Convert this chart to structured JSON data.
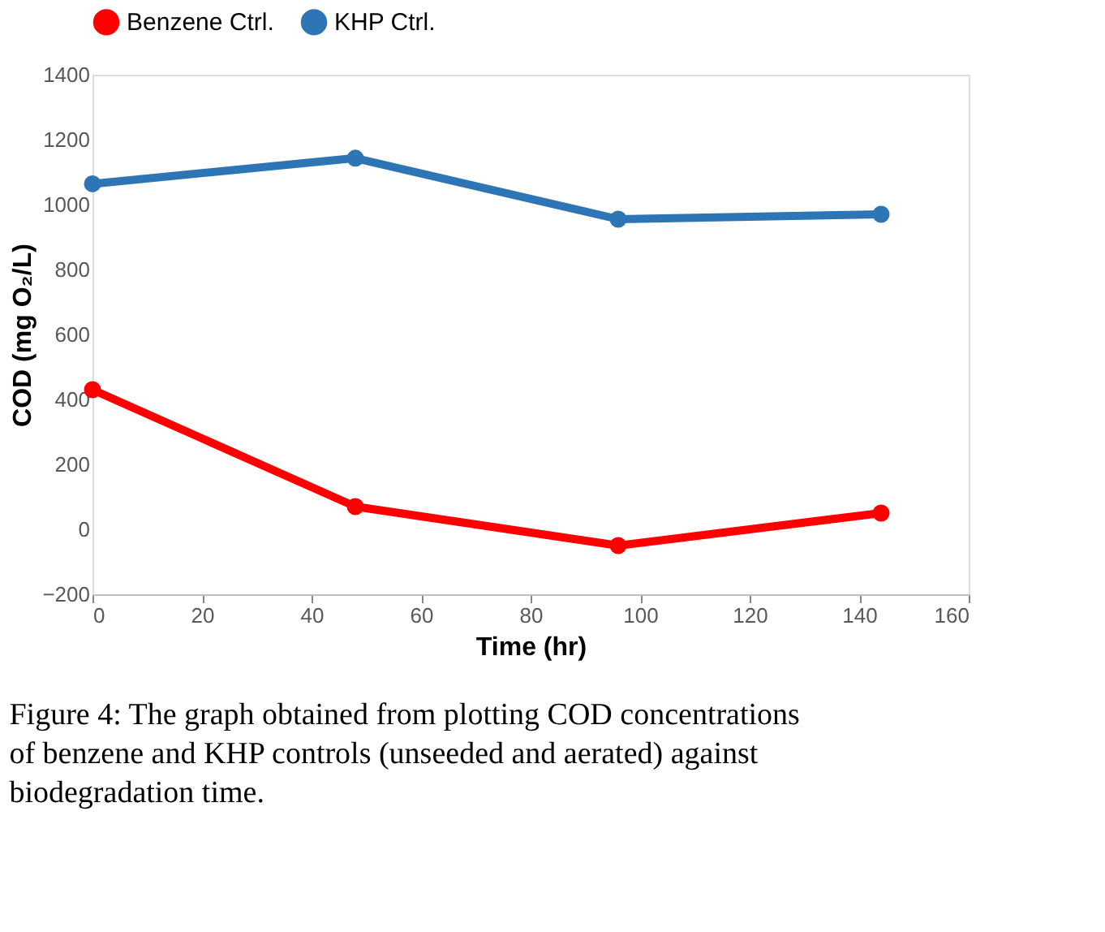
{
  "chart_data": {
    "type": "line",
    "xlabel": "Time (hr)",
    "ylabel": "COD (mg O₂/L)",
    "x": [
      0,
      48,
      96,
      144
    ],
    "series": [
      {
        "name": "Benzene Ctrl.",
        "color": "#ff0000",
        "values": [
          430,
          70,
          -50,
          50
        ]
      },
      {
        "name": "KHP Ctrl.",
        "color": "#2e75b6",
        "values": [
          1064,
          1143,
          955,
          970
        ]
      }
    ],
    "xlim": [
      0,
      160
    ],
    "xticks": [
      0,
      20,
      40,
      60,
      80,
      100,
      120,
      140,
      160
    ],
    "ylim": [
      -200,
      1400
    ],
    "yticks": [
      -200,
      0,
      200,
      400,
      600,
      800,
      1000,
      1200,
      1400
    ],
    "grid": false,
    "legend": "top",
    "marker": "circle",
    "line_style": "solid",
    "annotations": [
      "Figure 4: The graph obtained from plotting COD concentrations of benzene and KHP controls (unseeded and aerated) against biodegradation time."
    ]
  }
}
